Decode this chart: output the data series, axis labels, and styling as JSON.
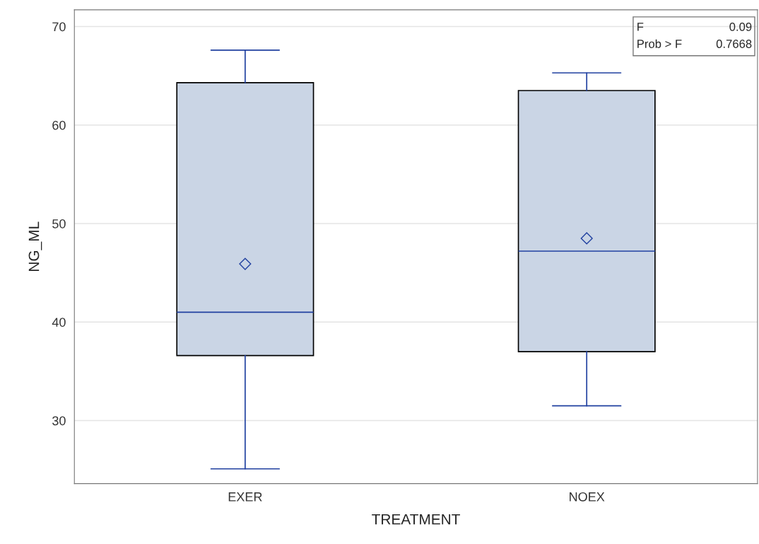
{
  "chart_data": {
    "type": "box",
    "xlabel": "TREATMENT",
    "ylabel": "NG_ML",
    "categories": [
      "EXER",
      "NOEX"
    ],
    "boxes": [
      {
        "low": 25.1,
        "q1": 36.6,
        "median": 41.0,
        "q3": 64.3,
        "high": 67.6,
        "mean": 45.9
      },
      {
        "low": 31.5,
        "q1": 37.0,
        "median": 47.2,
        "q3": 63.5,
        "high": 65.3,
        "mean": 48.5
      }
    ],
    "color": "#cad5e5",
    "ylim": [
      23.6,
      71.7
    ],
    "yticks": [
      30,
      40,
      50,
      60,
      70
    ],
    "grid": "y",
    "legend": false,
    "annotations": [
      "F",
      "0.09",
      "Prob > F",
      "0.7668"
    ]
  }
}
